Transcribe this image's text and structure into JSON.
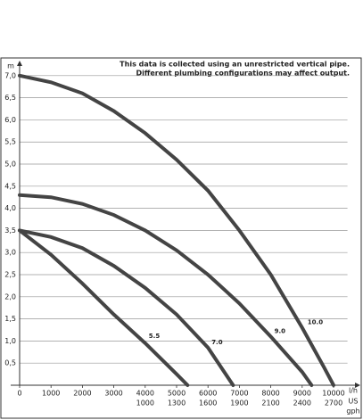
{
  "chart_data": {
    "type": "line",
    "annotation": [
      "This data is collected using an unrestricted vertical pipe.",
      "Different plumbing configurations may affect output."
    ],
    "y_label": "m",
    "x_label": "l/h",
    "x2_label": [
      "US",
      "gph"
    ],
    "xlim": [
      0,
      10500
    ],
    "ylim": [
      0,
      7.2
    ],
    "xticks": [
      0,
      1000,
      2000,
      3000,
      4000,
      5000,
      6000,
      7000,
      8000,
      9000,
      10000
    ],
    "x2_labels": [
      null,
      null,
      null,
      null,
      "1000",
      "1300",
      "1600",
      "1900",
      "2100",
      "2400",
      "2700"
    ],
    "yticks": [
      {
        "value": 0.5,
        "label": "0,5"
      },
      {
        "value": 1,
        "label": "1,0"
      },
      {
        "value": 1.5,
        "label": "1,5"
      },
      {
        "value": 2,
        "label": "2,0"
      },
      {
        "value": 2.5,
        "label": "2,5"
      },
      {
        "value": 3,
        "label": "3,0"
      },
      {
        "value": 3.5,
        "label": "3,5"
      },
      {
        "value": 4,
        "label": "4,0"
      },
      {
        "value": 4.5,
        "label": "4,5"
      },
      {
        "value": 5,
        "label": "5,0"
      },
      {
        "value": 5.5,
        "label": "5,5"
      },
      {
        "value": 6,
        "label": "6,0"
      },
      {
        "value": 6.5,
        "label": "6,5"
      },
      {
        "value": 7,
        "label": "7,0"
      }
    ],
    "grid": true,
    "series": [
      {
        "name": "10.0",
        "color": "#444444",
        "x": [
          0,
          1000,
          2000,
          3000,
          4000,
          5000,
          6000,
          7000,
          8000,
          9000,
          9700,
          10000
        ],
        "values": [
          7.0,
          6.85,
          6.6,
          6.2,
          5.7,
          5.1,
          4.4,
          3.5,
          2.5,
          1.3,
          0.4,
          0
        ]
      },
      {
        "name": "9.0",
        "color": "#444444",
        "x": [
          0,
          1000,
          2000,
          3000,
          4000,
          5000,
          6000,
          7000,
          8000,
          9000,
          9300
        ],
        "values": [
          4.3,
          4.25,
          4.1,
          3.85,
          3.5,
          3.05,
          2.5,
          1.85,
          1.1,
          0.3,
          0
        ]
      },
      {
        "name": "7.0",
        "color": "#444444",
        "x": [
          0,
          1000,
          2000,
          3000,
          4000,
          5000,
          6000,
          6800
        ],
        "values": [
          3.5,
          3.35,
          3.1,
          2.7,
          2.2,
          1.6,
          0.85,
          0
        ]
      },
      {
        "name": "5.5",
        "color": "#444444",
        "x": [
          0,
          1000,
          2000,
          3000,
          4000,
          5000,
          5350
        ],
        "values": [
          3.5,
          2.95,
          2.3,
          1.6,
          0.95,
          0.25,
          0
        ]
      }
    ]
  }
}
